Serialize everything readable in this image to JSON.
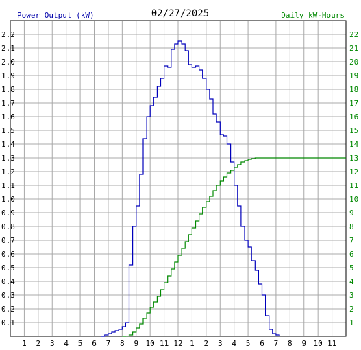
{
  "chart_data": {
    "type": "line",
    "title": "02/27/2025",
    "ylabel_left": "Power Output (kW)",
    "ylabel_right": "Daily kW-Hours",
    "x_tick_labels": [
      "1",
      "2",
      "3",
      "4",
      "5",
      "6",
      "7",
      "8",
      "9",
      "10",
      "11",
      "12",
      "1",
      "2",
      "3",
      "4",
      "5",
      "6",
      "7",
      "8",
      "9",
      "10",
      "11"
    ],
    "y_left_ticks": [
      "0.1",
      "0.2",
      "0.3",
      "0.4",
      "0.5",
      "0.6",
      "0.7",
      "0.8",
      "0.9",
      "1.0",
      "1.1",
      "1.2",
      "1.3",
      "1.4",
      "1.5",
      "1.6",
      "1.7",
      "1.8",
      "1.9",
      "2.0",
      "2.1",
      "2.2"
    ],
    "y_right_ticks": [
      "1",
      "2",
      "3",
      "4",
      "5",
      "6",
      "7",
      "8",
      "9",
      "10",
      "11",
      "12",
      "13",
      "14",
      "15",
      "16",
      "17",
      "18",
      "19",
      "20",
      "21",
      "22"
    ],
    "xlim": [
      0,
      24
    ],
    "ylim_left": [
      0,
      2.3
    ],
    "ylim_right": [
      0,
      23
    ],
    "grid": true,
    "colors": {
      "power": "#0000bb",
      "energy": "#008800",
      "grid": "#a8a8a8"
    },
    "series": [
      {
        "axis": "left",
        "step": true,
        "x": [
          6.5,
          6.75,
          7.0,
          7.25,
          7.5,
          7.75,
          8.0,
          8.25,
          8.5,
          8.75,
          9.0,
          9.25,
          9.5,
          9.75,
          10.0,
          10.25,
          10.5,
          10.75,
          11.0,
          11.25,
          11.5,
          11.75,
          12.0,
          12.25,
          12.5,
          12.75,
          13.0,
          13.25,
          13.5,
          13.75,
          14.0,
          14.25,
          14.5,
          14.75,
          15.0,
          15.25,
          15.5,
          15.75,
          16.0,
          16.25,
          16.5,
          16.75,
          17.0,
          17.25,
          17.5,
          17.75,
          18.0,
          18.25,
          18.5,
          18.75,
          19.0,
          19.25
        ],
        "values": [
          0.0,
          0.01,
          0.02,
          0.03,
          0.04,
          0.05,
          0.07,
          0.1,
          0.52,
          0.8,
          0.95,
          1.18,
          1.44,
          1.6,
          1.68,
          1.74,
          1.82,
          1.88,
          1.97,
          1.96,
          2.09,
          2.13,
          2.15,
          2.13,
          2.08,
          1.98,
          1.96,
          1.97,
          1.94,
          1.88,
          1.8,
          1.73,
          1.62,
          1.56,
          1.47,
          1.46,
          1.4,
          1.27,
          1.1,
          0.95,
          0.8,
          0.7,
          0.65,
          0.55,
          0.48,
          0.38,
          0.3,
          0.15,
          0.05,
          0.02,
          0.01,
          0.0
        ]
      },
      {
        "axis": "right",
        "step": true,
        "x": [
          8.0,
          8.25,
          8.5,
          8.75,
          9.0,
          9.25,
          9.5,
          9.75,
          10.0,
          10.25,
          10.5,
          10.75,
          11.0,
          11.25,
          11.5,
          11.75,
          12.0,
          12.25,
          12.5,
          12.75,
          13.0,
          13.25,
          13.5,
          13.75,
          14.0,
          14.25,
          14.5,
          14.75,
          15.0,
          15.25,
          15.5,
          15.75,
          16.0,
          16.25,
          16.5,
          16.75,
          17.0,
          17.25,
          17.5,
          17.75,
          18.0,
          24.0
        ],
        "values": [
          0.0,
          0.02,
          0.1,
          0.3,
          0.6,
          0.9,
          1.3,
          1.7,
          2.1,
          2.5,
          2.9,
          3.4,
          3.9,
          4.4,
          4.9,
          5.4,
          5.9,
          6.4,
          6.9,
          7.4,
          7.9,
          8.4,
          8.9,
          9.4,
          9.8,
          10.2,
          10.6,
          11.0,
          11.3,
          11.6,
          11.9,
          12.1,
          12.3,
          12.5,
          12.7,
          12.8,
          12.9,
          12.95,
          13.0,
          13.0,
          13.0,
          13.0
        ]
      }
    ]
  }
}
